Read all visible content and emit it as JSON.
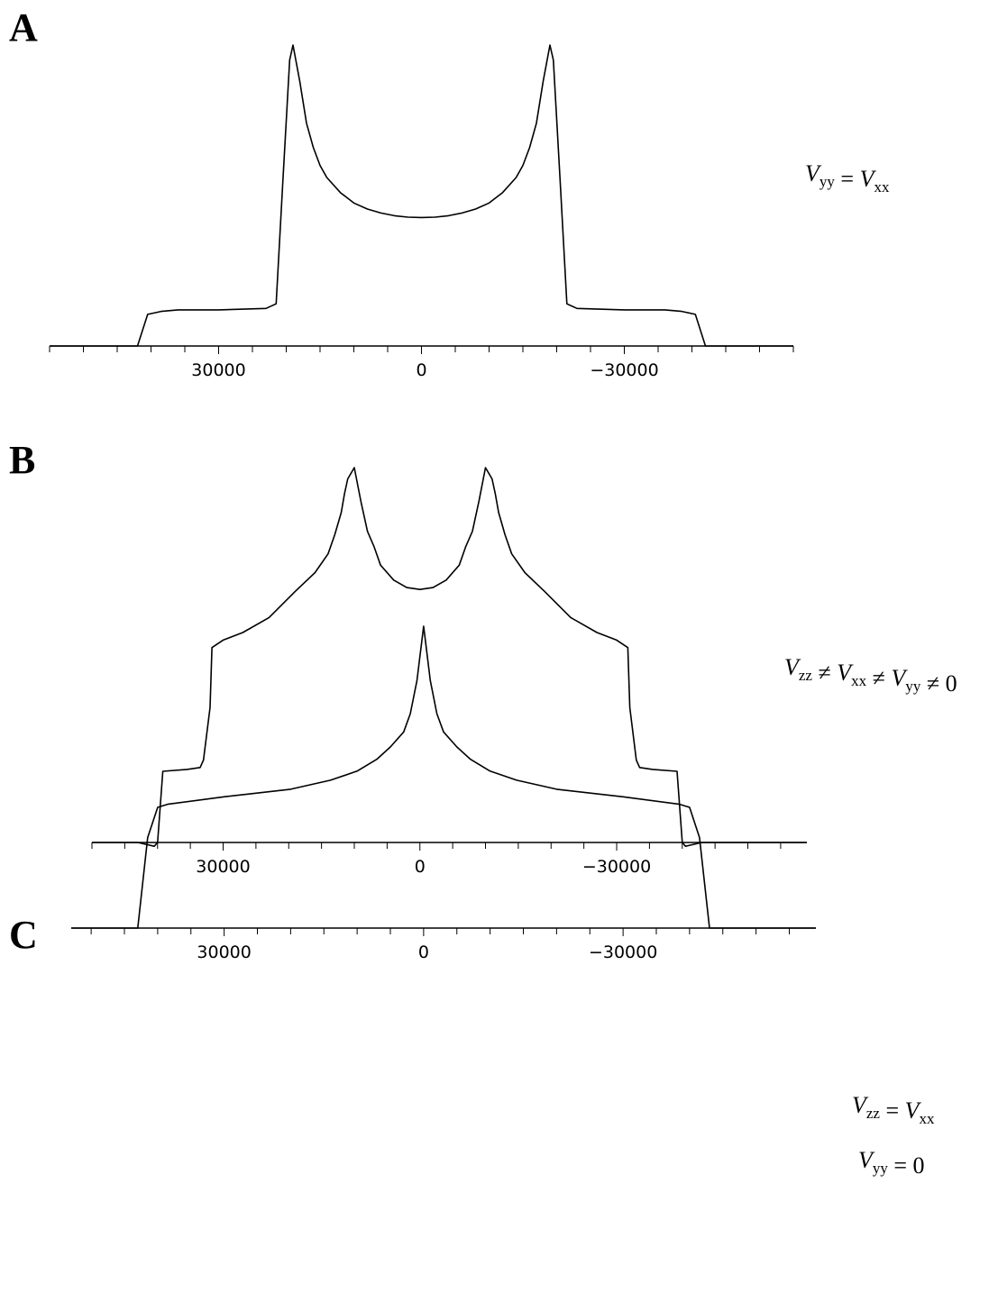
{
  "chart_data": [
    {
      "panel_label": "A",
      "type": "line",
      "annotation": [
        [
          {
            "v": "V",
            "sub": "yy"
          },
          {
            "text": " = "
          },
          {
            "v": "V",
            "sub": "xx"
          }
        ]
      ],
      "xlim": [
        55000,
        -55000
      ],
      "ylim": [
        0,
        1.0
      ],
      "xticks": [
        30000,
        0,
        -30000
      ],
      "tick_labels": [
        "30000",
        "0",
        "−30000"
      ],
      "minor_tick_step": 5000,
      "x": [
        55000,
        42000,
        40500,
        38500,
        36000,
        30000,
        23000,
        21500,
        20500,
        19500,
        19000,
        18000,
        17000,
        16000,
        15000,
        14000,
        12000,
        10000,
        8000,
        6000,
        4000,
        2000,
        0,
        -2000,
        -4000,
        -6000,
        -8000,
        -10000,
        -12000,
        -14000,
        -15000,
        -16000,
        -17000,
        -18000,
        -19000,
        -19500,
        -20500,
        -21500,
        -23000,
        -30000,
        -36000,
        -38500,
        -40500,
        -42000,
        -55000
      ],
      "y": [
        0.0,
        0.0,
        0.105,
        0.115,
        0.12,
        0.12,
        0.125,
        0.14,
        0.55,
        0.95,
        1.0,
        0.88,
        0.74,
        0.66,
        0.6,
        0.56,
        0.51,
        0.475,
        0.455,
        0.442,
        0.433,
        0.428,
        0.427,
        0.428,
        0.433,
        0.442,
        0.455,
        0.475,
        0.51,
        0.56,
        0.6,
        0.66,
        0.74,
        0.88,
        1.0,
        0.95,
        0.55,
        0.14,
        0.125,
        0.12,
        0.12,
        0.115,
        0.105,
        0.0,
        0.0
      ]
    },
    {
      "panel_label": "B",
      "type": "line",
      "annotation": [
        [
          {
            "v": "V",
            "sub": "zz"
          },
          {
            "text": " ≠ "
          },
          {
            "v": "V",
            "sub": "xx"
          },
          {
            "text": " ≠ "
          },
          {
            "v": "V",
            "sub": "yy"
          },
          {
            "text": " ≠ 0"
          }
        ]
      ],
      "xlim": [
        50000,
        -59000
      ],
      "ylim": [
        0,
        1.0
      ],
      "xticks": [
        30000,
        0,
        -30000
      ],
      "tick_labels": [
        "30000",
        "0",
        "−30000"
      ],
      "minor_tick_step": 5000,
      "x": [
        50000,
        43000,
        40500,
        40000,
        39200,
        35500,
        33500,
        33000,
        32000,
        31700,
        30000,
        27000,
        23000,
        19000,
        16000,
        14000,
        13000,
        12000,
        11500,
        11000,
        10000,
        9000,
        8000,
        7000,
        6000,
        4000,
        2000,
        0,
        -2000,
        -4000,
        -6000,
        -7000,
        -8000,
        -9000,
        -10000,
        -11000,
        -11500,
        -12000,
        -13000,
        -14000,
        -16000,
        -19000,
        -23000,
        -27000,
        -30000,
        -31700,
        -32000,
        -33000,
        -33500,
        -35500,
        -39200,
        -40000,
        -40500,
        -43000,
        -59000
      ],
      "y": [
        0.0,
        0.0,
        -0.01,
        0.0,
        0.19,
        0.195,
        0.2,
        0.22,
        0.36,
        0.52,
        0.54,
        0.56,
        0.6,
        0.67,
        0.72,
        0.77,
        0.82,
        0.88,
        0.93,
        0.97,
        1.0,
        0.91,
        0.83,
        0.79,
        0.74,
        0.7,
        0.68,
        0.675,
        0.68,
        0.7,
        0.74,
        0.79,
        0.83,
        0.91,
        1.0,
        0.97,
        0.93,
        0.88,
        0.82,
        0.77,
        0.72,
        0.67,
        0.6,
        0.56,
        0.54,
        0.52,
        0.36,
        0.22,
        0.2,
        0.195,
        0.19,
        0.0,
        -0.01,
        0.0,
        0.0
      ]
    },
    {
      "panel_label": "C",
      "type": "line",
      "annotation": [
        [
          {
            "v": "V",
            "sub": "zz"
          },
          {
            "text": " = "
          },
          {
            "v": "V",
            "sub": "xx"
          }
        ],
        [
          {
            "v": "V",
            "sub": "yy"
          },
          {
            "text": " = 0"
          }
        ]
      ],
      "xlim": [
        53000,
        -59000
      ],
      "ylim": [
        0,
        1.0
      ],
      "xticks": [
        30000,
        0,
        -30000
      ],
      "tick_labels": [
        "30000",
        "0",
        "−30000"
      ],
      "minor_tick_step": 5000,
      "x": [
        53000,
        43000,
        41500,
        40000,
        38500,
        30000,
        20000,
        14000,
        10000,
        7000,
        5000,
        3000,
        2000,
        1000,
        0,
        -1000,
        -2000,
        -3000,
        -5000,
        -7000,
        -10000,
        -14000,
        -20000,
        -30000,
        -38500,
        -40000,
        -41500,
        -43000,
        -59000
      ],
      "y": [
        0.0,
        0.0,
        0.3,
        0.4,
        0.41,
        0.435,
        0.46,
        0.49,
        0.52,
        0.56,
        0.6,
        0.65,
        0.71,
        0.82,
        1.0,
        0.82,
        0.71,
        0.65,
        0.6,
        0.56,
        0.52,
        0.49,
        0.46,
        0.435,
        0.41,
        0.4,
        0.3,
        0.0,
        0.0
      ]
    }
  ]
}
